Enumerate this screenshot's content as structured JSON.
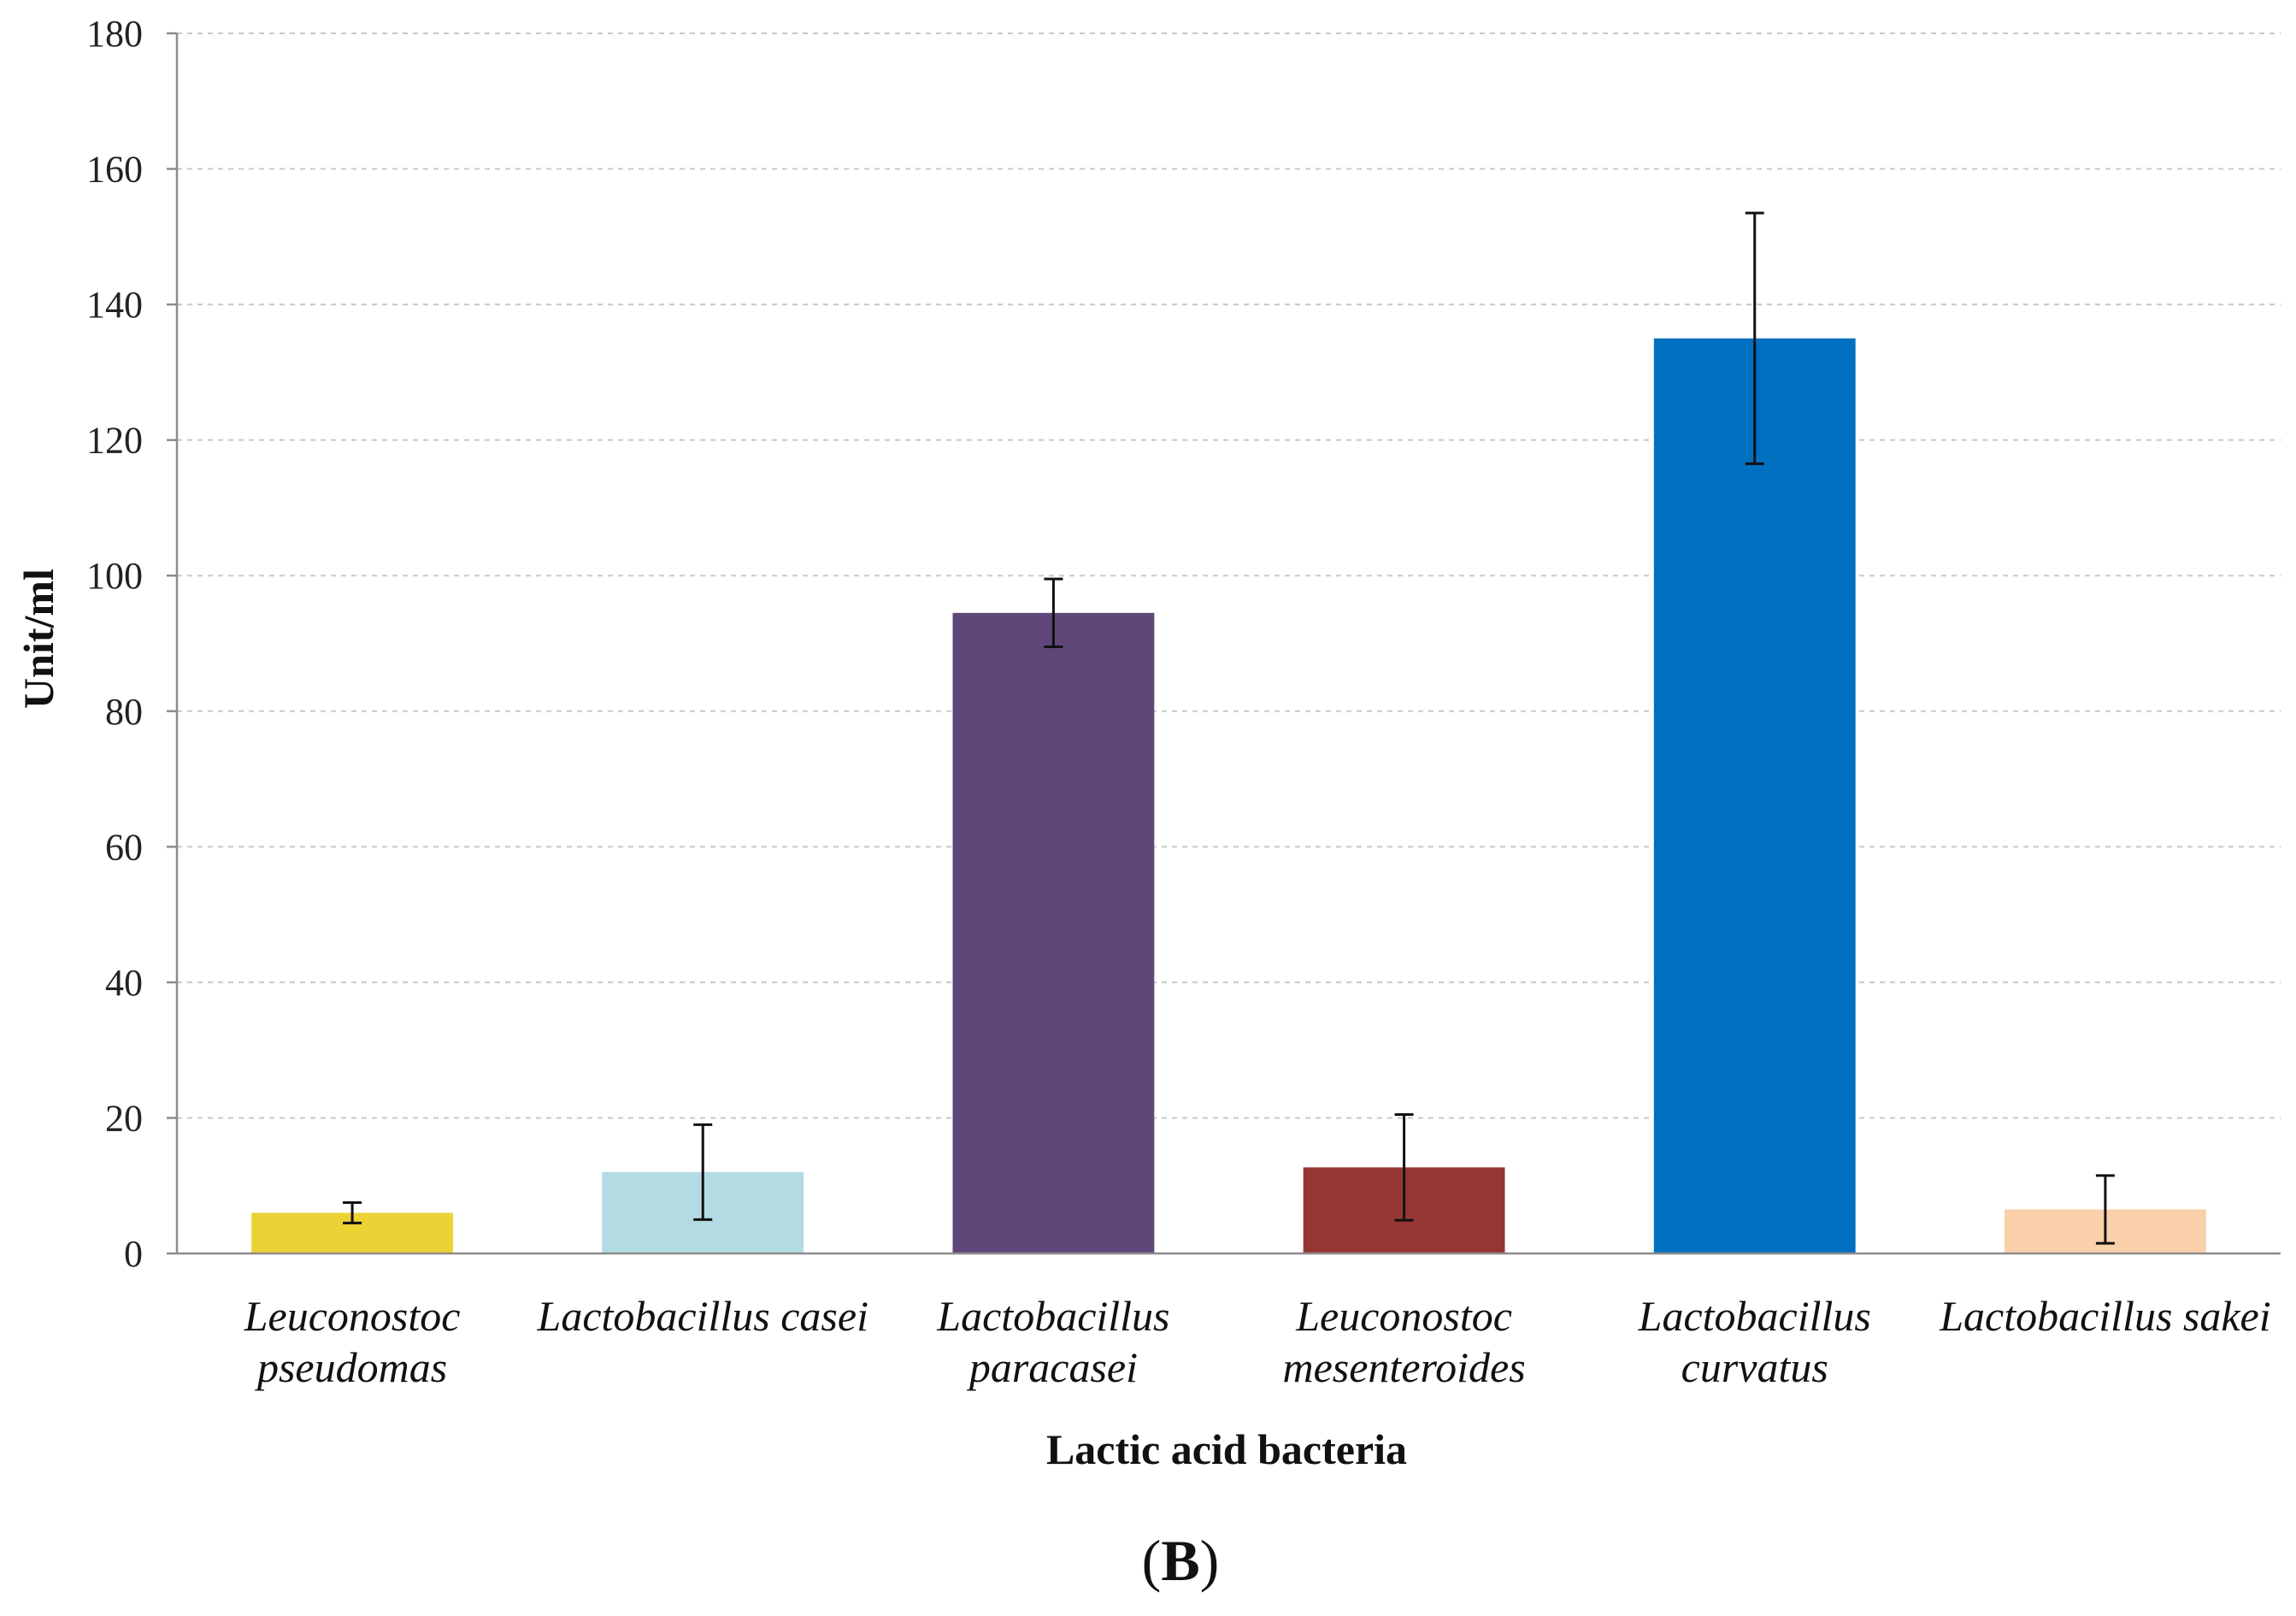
{
  "chart_data": {
    "type": "bar",
    "categories": [
      [
        "Leuconostoc",
        "pseudomas"
      ],
      [
        "Lactobacillus casei"
      ],
      [
        "Lactobacillus",
        "paracasei"
      ],
      [
        "Leuconostoc",
        "mesenteroides"
      ],
      [
        "Lactobacillus",
        "curvatus"
      ],
      [
        "Lactobacillus sakei"
      ]
    ],
    "values": [
      6,
      12,
      94.5,
      12.7,
      135,
      6.5
    ],
    "errors": [
      1.5,
      7,
      5,
      7.8,
      18.5,
      5
    ],
    "colors": [
      "#ecd335",
      "#b3dbe3",
      "#5f4879",
      "#963634",
      "#0170c1",
      "#fad0ab"
    ],
    "ylim": [
      0,
      180
    ],
    "yticks": [
      0,
      20,
      40,
      60,
      80,
      100,
      120,
      140,
      160,
      180
    ],
    "xlabel": "Lactic acid bacteria",
    "ylabel": "Unit/ml",
    "grid": true
  },
  "panel_label": {
    "open": "(",
    "letter": "B",
    "close": ")"
  }
}
